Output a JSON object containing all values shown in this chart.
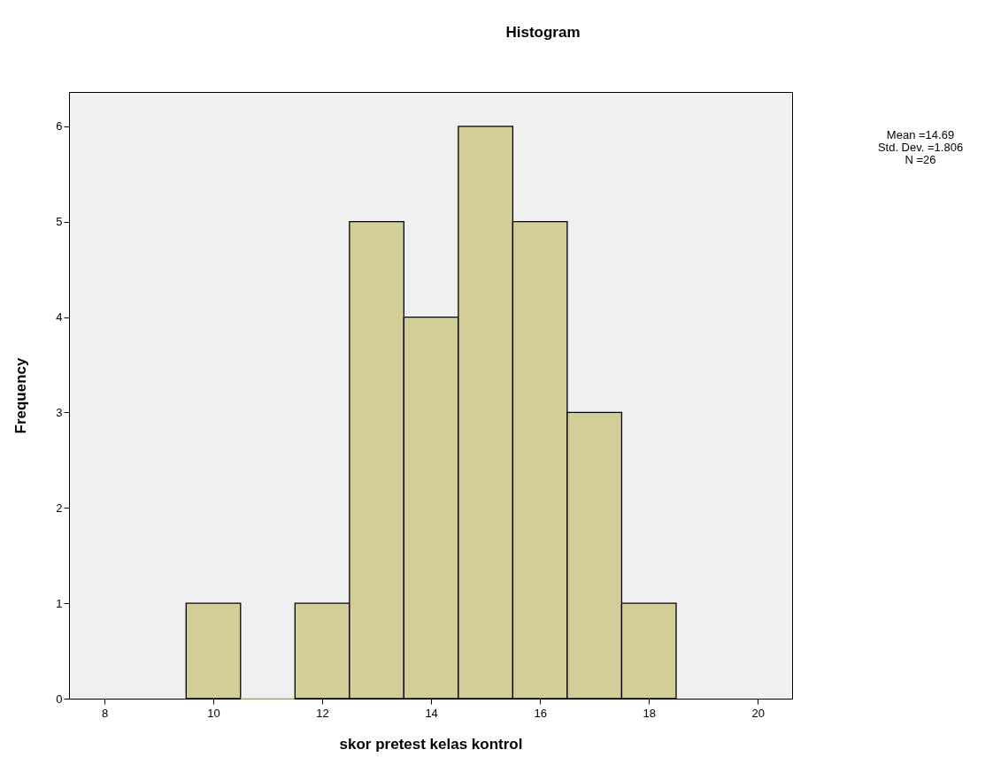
{
  "chart_data": {
    "type": "histogram",
    "title": "Histogram",
    "xlabel": "skor pretest kelas kontrol",
    "ylabel": "Frequency",
    "bins": [
      9.5,
      10.5,
      11.5,
      12.5,
      13.5,
      14.5,
      15.5,
      16.5,
      17.5,
      18.5
    ],
    "values": [
      1,
      0,
      1,
      5,
      4,
      6,
      5,
      3,
      1
    ],
    "color": "#d3ce98",
    "xlim": [
      7.35,
      20.63
    ],
    "xticks": [
      8,
      10,
      12,
      14,
      16,
      18,
      20
    ],
    "ylim": [
      0,
      6.36
    ],
    "yticks": [
      0,
      1,
      2,
      3,
      4,
      5,
      6
    ],
    "grid": false,
    "annotations": [
      "Mean =14.69",
      "Std. Dev. =1.806",
      "N =26"
    ]
  }
}
